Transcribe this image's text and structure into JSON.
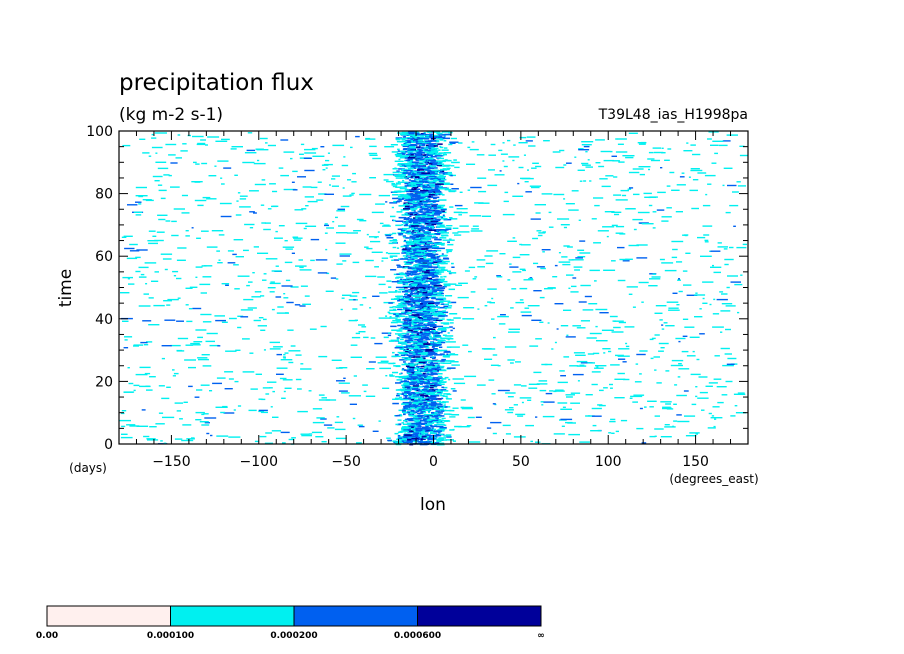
{
  "chart_data": {
    "type": "heatmap",
    "title": "precipitation flux",
    "units": "(kg m-2 s-1)",
    "run_label": "T39L48_ias_H1998pa",
    "xlabel": "lon",
    "x_units": "(degrees_east)",
    "ylabel": "time",
    "y_units": "(days)",
    "xlim": [
      -180,
      180
    ],
    "ylim": [
      0,
      100
    ],
    "x_ticks": [
      -150,
      -100,
      -50,
      0,
      50,
      100,
      150
    ],
    "x_tick_labels": [
      "−150",
      "−100",
      "−50",
      "0",
      "50",
      "100",
      "150"
    ],
    "y_ticks": [
      0,
      20,
      40,
      60,
      80,
      100
    ],
    "y_tick_labels": [
      "0",
      "20",
      "40",
      "60",
      "80",
      "100"
    ],
    "colorbar": {
      "levels": [
        "0.00",
        "0.000100",
        "0.000200",
        "0.000600",
        "∞"
      ],
      "colors": [
        "#fff0ee",
        "#00f0f0",
        "#0060f0",
        "#00009a"
      ]
    },
    "pattern": {
      "band_center_lon": -8,
      "band_half_width_deg": 22,
      "band_lat_note": "enhanced precipitation band near 0° lon"
    }
  }
}
